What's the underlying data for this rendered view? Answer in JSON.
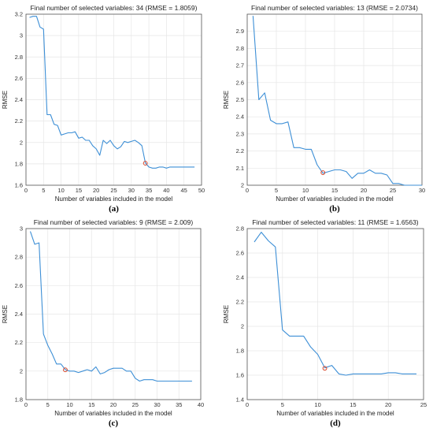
{
  "colors": {
    "line": "#3d8fd6",
    "marker": "#d9472b",
    "grid": "#e6e6e6",
    "axis": "#555555"
  },
  "chart_data": [
    {
      "type": "line",
      "panel_label": "(a)",
      "title": "Final number of selected variables: 34  (RMSE = 1.8059)",
      "xlabel": "Number of variables included in the model",
      "ylabel": "RMSE",
      "xlim": [
        0,
        50
      ],
      "ylim": [
        1.6,
        3.2
      ],
      "xticks": [
        0,
        5,
        10,
        15,
        20,
        25,
        30,
        35,
        40,
        45,
        50
      ],
      "yticks": [
        1.6,
        1.8,
        2,
        2.2,
        2.4,
        2.6,
        2.8,
        3,
        3.2
      ],
      "x": [
        1,
        2,
        3,
        4,
        5,
        6,
        7,
        8,
        9,
        10,
        11,
        12,
        13,
        14,
        15,
        16,
        17,
        18,
        19,
        20,
        21,
        22,
        23,
        24,
        25,
        26,
        27,
        28,
        29,
        30,
        31,
        32,
        33,
        34,
        35,
        36,
        37,
        38,
        39,
        40,
        41,
        42,
        43,
        44,
        45,
        46,
        47,
        48
      ],
      "y": [
        3.17,
        3.18,
        3.18,
        3.08,
        3.06,
        2.26,
        2.26,
        2.17,
        2.16,
        2.07,
        2.08,
        2.09,
        2.09,
        2.1,
        2.04,
        2.05,
        2.02,
        2.02,
        1.97,
        1.94,
        1.88,
        2.02,
        1.99,
        2.02,
        1.97,
        1.94,
        1.96,
        2.01,
        2.0,
        2.01,
        2.02,
        2.0,
        1.97,
        1.81,
        1.77,
        1.76,
        1.76,
        1.77,
        1.77,
        1.76,
        1.77,
        1.77,
        1.77,
        1.77,
        1.77,
        1.77,
        1.77,
        1.77
      ],
      "selected": {
        "x": 34,
        "y": 1.8059
      },
      "grid": true
    },
    {
      "type": "line",
      "panel_label": "(b)",
      "title": "Final number of selected variables: 13  (RMSE = 2.0734)",
      "xlabel": "Number of variables included in the model",
      "ylabel": "RMSE",
      "xlim": [
        0,
        30
      ],
      "ylim": [
        2,
        3
      ],
      "xticks": [
        0,
        5,
        10,
        15,
        20,
        25,
        30
      ],
      "yticks": [
        2,
        2.1,
        2.2,
        2.3,
        2.4,
        2.5,
        2.6,
        2.7,
        2.8,
        2.9
      ],
      "x": [
        1,
        2,
        3,
        4,
        5,
        6,
        7,
        8,
        9,
        10,
        11,
        12,
        13,
        14,
        15,
        16,
        17,
        18,
        19,
        20,
        21,
        22,
        23,
        24,
        25,
        26,
        27,
        28,
        29,
        30
      ],
      "y": [
        2.99,
        2.5,
        2.54,
        2.38,
        2.36,
        2.36,
        2.37,
        2.22,
        2.22,
        2.21,
        2.21,
        2.12,
        2.07,
        2.08,
        2.09,
        2.09,
        2.08,
        2.04,
        2.07,
        2.07,
        2.09,
        2.07,
        2.07,
        2.06,
        2.01,
        2.01,
        2.0,
        2.0,
        2.0,
        2.0
      ],
      "selected": {
        "x": 13,
        "y": 2.0734
      },
      "grid": true
    },
    {
      "type": "line",
      "panel_label": "(c)",
      "title": "Final number of selected variables: 9  (RMSE = 2.009)",
      "xlabel": "Number of variables included in the model",
      "ylabel": "RMSE",
      "xlim": [
        0,
        40
      ],
      "ylim": [
        1.8,
        3
      ],
      "xticks": [
        0,
        5,
        10,
        15,
        20,
        25,
        30,
        35,
        40
      ],
      "yticks": [
        1.8,
        2,
        2.2,
        2.4,
        2.6,
        2.8,
        3
      ],
      "x": [
        1,
        2,
        3,
        4,
        5,
        6,
        7,
        8,
        9,
        10,
        11,
        12,
        13,
        14,
        15,
        16,
        17,
        18,
        19,
        20,
        21,
        22,
        23,
        24,
        25,
        26,
        27,
        28,
        29,
        30,
        31,
        32,
        33,
        34,
        35,
        36,
        37,
        38
      ],
      "y": [
        2.98,
        2.89,
        2.9,
        2.26,
        2.18,
        2.12,
        2.05,
        2.05,
        2.01,
        2.0,
        2.0,
        1.99,
        2.0,
        2.01,
        2.0,
        2.03,
        1.98,
        1.99,
        2.01,
        2.02,
        2.02,
        2.02,
        2.0,
        2.0,
        1.95,
        1.93,
        1.94,
        1.94,
        1.94,
        1.93,
        1.93,
        1.93,
        1.93,
        1.93,
        1.93,
        1.93,
        1.93,
        1.93
      ],
      "selected": {
        "x": 9,
        "y": 2.009
      },
      "grid": true
    },
    {
      "type": "line",
      "panel_label": "(d)",
      "title": "Final number of selected variables: 11  (RMSE = 1.6563)",
      "xlabel": "Number of variables included in the model",
      "ylabel": "RMSE",
      "xlim": [
        0,
        25
      ],
      "ylim": [
        1.4,
        2.8
      ],
      "xticks": [
        0,
        5,
        10,
        15,
        20,
        25
      ],
      "yticks": [
        1.4,
        1.6,
        1.8,
        2,
        2.2,
        2.4,
        2.6,
        2.8
      ],
      "x": [
        1,
        2,
        3,
        4,
        5,
        6,
        7,
        8,
        9,
        10,
        11,
        12,
        13,
        14,
        15,
        16,
        17,
        18,
        19,
        20,
        21,
        22,
        23,
        24
      ],
      "y": [
        2.69,
        2.77,
        2.7,
        2.65,
        1.97,
        1.92,
        1.92,
        1.92,
        1.83,
        1.77,
        1.66,
        1.68,
        1.61,
        1.6,
        1.61,
        1.61,
        1.61,
        1.61,
        1.61,
        1.62,
        1.62,
        1.61,
        1.61,
        1.61
      ],
      "selected": {
        "x": 11,
        "y": 1.6563
      },
      "grid": true
    }
  ]
}
